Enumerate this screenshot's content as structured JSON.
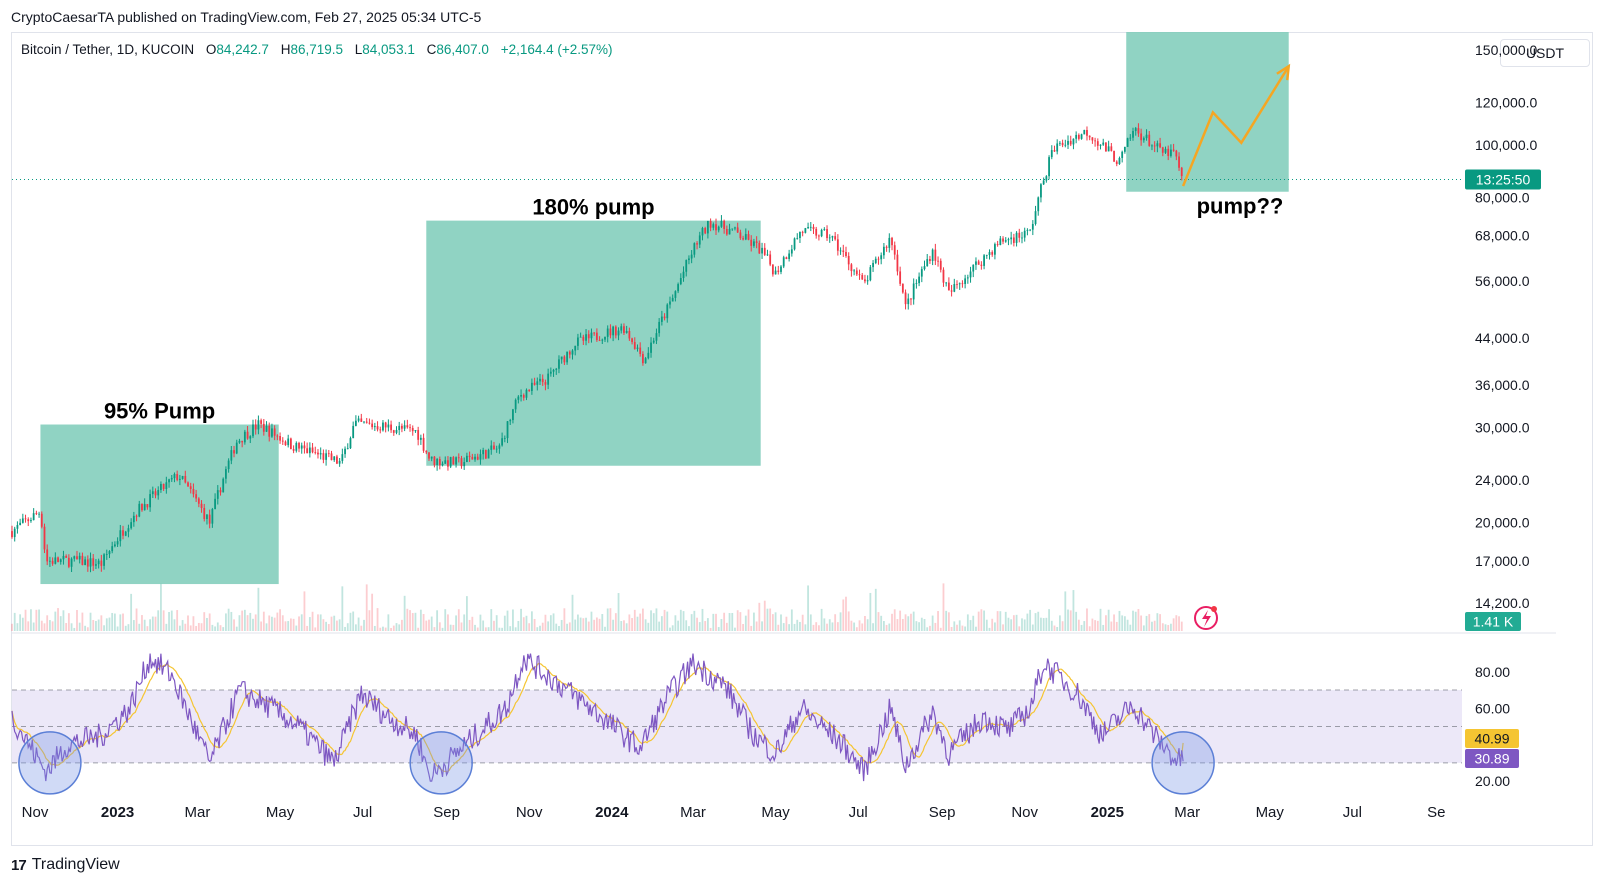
{
  "attribution": "CryptoCaesarTA published on TradingView.com, Feb 27, 2025 05:34 UTC-5",
  "symbol": {
    "name": "Bitcoin / Tether, 1D, KUCOIN",
    "o_label": "O",
    "o": "84,242.7",
    "h_label": "H",
    "h": "86,719.5",
    "l_label": "L",
    "l": "84,053.1",
    "c_label": "C",
    "c": "86,407.0",
    "change": "+2,164.4 (+2.57%)"
  },
  "currency": "USDT",
  "brand": {
    "logo": "17",
    "name": "TradingView"
  },
  "colors": {
    "teal_box": "#7ccbb9",
    "price_up": "#089981",
    "price_down": "#f23645",
    "rsi_line": "#7e57c2",
    "rsi_ma": "#f5c532",
    "arrow": "#f5a623",
    "rsi_band": "#ece8f8"
  },
  "chart_data": [
    {
      "type": "candlestick",
      "name": "price",
      "scale": "log",
      "ylim": [
        12500,
        162000
      ],
      "xlim": [
        "2022-10-15",
        "2025-09-20"
      ],
      "y_ticks": [
        "14,200.0",
        "17,000.0",
        "20,000.0",
        "24,000.0",
        "30,000.0",
        "36,000.0",
        "44,000.0",
        "56,000.0",
        "68,000.0",
        "80,000.0",
        "100,000.0",
        "120,000.0",
        "150,000.0"
      ],
      "y_tick_values": [
        14200,
        17000,
        20000,
        24000,
        30000,
        36000,
        44000,
        56000,
        68000,
        80000,
        100000,
        120000,
        150000
      ],
      "price_path": [
        [
          "2022-10-15",
          19300
        ],
        [
          "2022-11-05",
          21000
        ],
        [
          "2022-11-09",
          17000
        ],
        [
          "2022-12-01",
          17000
        ],
        [
          "2022-12-20",
          16800
        ],
        [
          "2023-01-15",
          21000
        ],
        [
          "2023-02-15",
          24500
        ],
        [
          "2023-03-10",
          20000
        ],
        [
          "2023-03-30",
          28300
        ],
        [
          "2023-04-15",
          30400
        ],
        [
          "2023-05-10",
          27800
        ],
        [
          "2023-06-15",
          25800
        ],
        [
          "2023-06-25",
          30500
        ],
        [
          "2023-07-15",
          30200
        ],
        [
          "2023-08-10",
          29500
        ],
        [
          "2023-08-20",
          26100
        ],
        [
          "2023-09-10",
          25800
        ],
        [
          "2023-10-10",
          27500
        ],
        [
          "2023-10-25",
          34500
        ],
        [
          "2023-11-15",
          37000
        ],
        [
          "2023-12-05",
          43000
        ],
        [
          "2024-01-10",
          46000
        ],
        [
          "2024-01-25",
          40000
        ],
        [
          "2024-02-15",
          52000
        ],
        [
          "2024-03-05",
          67000
        ],
        [
          "2024-03-14",
          72000
        ],
        [
          "2024-04-01",
          69000
        ],
        [
          "2024-04-20",
          64000
        ],
        [
          "2024-05-01",
          58000
        ],
        [
          "2024-05-20",
          69500
        ],
        [
          "2024-06-10",
          68000
        ],
        [
          "2024-07-05",
          55000
        ],
        [
          "2024-07-25",
          67500
        ],
        [
          "2024-08-05",
          50000
        ],
        [
          "2024-08-25",
          64000
        ],
        [
          "2024-09-06",
          53000
        ],
        [
          "2024-10-15",
          66500
        ],
        [
          "2024-11-05",
          69000
        ],
        [
          "2024-11-22",
          98500
        ],
        [
          "2024-12-17",
          106000
        ],
        [
          "2025-01-10",
          93000
        ],
        [
          "2025-01-21",
          107000
        ],
        [
          "2025-02-10",
          97000
        ],
        [
          "2025-02-20",
          96500
        ],
        [
          "2025-02-26",
          84000
        ]
      ],
      "volume_badge": "1.41 K",
      "current_price_line": 86407,
      "countdown_badge": "13:25:50"
    },
    {
      "type": "line",
      "name": "RSI",
      "ylim": [
        14,
        92
      ],
      "y_ticks": [
        "20.00",
        "60.00",
        "80.00"
      ],
      "y_tick_values": [
        20,
        60,
        80
      ],
      "bands": [
        30,
        50,
        70
      ],
      "value_badges": [
        {
          "label": "40.99",
          "color": "#f5c532"
        },
        {
          "label": "30.89",
          "color": "#7e57c2"
        }
      ],
      "rsi_path": [
        [
          "2022-10-15",
          55
        ],
        [
          "2022-11-09",
          25
        ],
        [
          "2022-11-25",
          40
        ],
        [
          "2022-12-20",
          45
        ],
        [
          "2023-01-10",
          60
        ],
        [
          "2023-01-25",
          88
        ],
        [
          "2023-02-10",
          78
        ],
        [
          "2023-03-10",
          30
        ],
        [
          "2023-04-01",
          70
        ],
        [
          "2023-04-25",
          60
        ],
        [
          "2023-05-15",
          50
        ],
        [
          "2023-06-10",
          30
        ],
        [
          "2023-06-30",
          68
        ],
        [
          "2023-07-20",
          55
        ],
        [
          "2023-08-10",
          45
        ],
        [
          "2023-08-20",
          22
        ],
        [
          "2023-09-15",
          40
        ],
        [
          "2023-10-15",
          60
        ],
        [
          "2023-10-28",
          88
        ],
        [
          "2023-11-20",
          75
        ],
        [
          "2023-12-20",
          58
        ],
        [
          "2024-01-22",
          38
        ],
        [
          "2024-02-10",
          65
        ],
        [
          "2024-03-01",
          85
        ],
        [
          "2024-03-25",
          72
        ],
        [
          "2024-04-15",
          45
        ],
        [
          "2024-05-01",
          35
        ],
        [
          "2024-05-20",
          60
        ],
        [
          "2024-06-20",
          40
        ],
        [
          "2024-07-05",
          25
        ],
        [
          "2024-07-25",
          60
        ],
        [
          "2024-08-05",
          28
        ],
        [
          "2024-08-25",
          58
        ],
        [
          "2024-09-06",
          35
        ],
        [
          "2024-10-01",
          55
        ],
        [
          "2024-10-20",
          48
        ],
        [
          "2024-11-05",
          60
        ],
        [
          "2024-11-15",
          85
        ],
        [
          "2024-12-10",
          68
        ],
        [
          "2024-12-28",
          45
        ],
        [
          "2025-01-20",
          62
        ],
        [
          "2025-02-05",
          45
        ],
        [
          "2025-02-20",
          32
        ],
        [
          "2025-02-26",
          30.89
        ]
      ],
      "rsi_ma_final": 40.99
    }
  ],
  "x_ticks": [
    {
      "label": "Nov",
      "date": "2022-11-01",
      "bold": false
    },
    {
      "label": "2023",
      "date": "2023-01-01",
      "bold": true
    },
    {
      "label": "Mar",
      "date": "2023-03-01",
      "bold": false
    },
    {
      "label": "May",
      "date": "2023-05-01",
      "bold": false
    },
    {
      "label": "Jul",
      "date": "2023-07-01",
      "bold": false
    },
    {
      "label": "Sep",
      "date": "2023-09-01",
      "bold": false
    },
    {
      "label": "Nov",
      "date": "2023-11-01",
      "bold": false
    },
    {
      "label": "2024",
      "date": "2024-01-01",
      "bold": true
    },
    {
      "label": "Mar",
      "date": "2024-03-01",
      "bold": false
    },
    {
      "label": "May",
      "date": "2024-05-01",
      "bold": false
    },
    {
      "label": "Jul",
      "date": "2024-07-01",
      "bold": false
    },
    {
      "label": "Sep",
      "date": "2024-09-01",
      "bold": false
    },
    {
      "label": "Nov",
      "date": "2024-11-01",
      "bold": false
    },
    {
      "label": "2025",
      "date": "2025-01-01",
      "bold": true
    },
    {
      "label": "Mar",
      "date": "2025-03-01",
      "bold": false
    },
    {
      "label": "May",
      "date": "2025-05-01",
      "bold": false
    },
    {
      "label": "Jul",
      "date": "2025-07-01",
      "bold": false
    },
    {
      "label": "Se",
      "date": "2025-09-01",
      "bold": false
    }
  ],
  "annotations": {
    "boxes": [
      {
        "name": "pump-box-1",
        "x0": "2022-11-05",
        "x1": "2023-04-30",
        "y0": 15400,
        "y1": 30400,
        "label": "95% Pump"
      },
      {
        "name": "pump-box-2",
        "x0": "2023-08-17",
        "x1": "2024-04-20",
        "y0": 25500,
        "y1": 72500,
        "label": "180% pump"
      },
      {
        "name": "pump-box-3",
        "x0": "2025-01-15",
        "x1": "2025-05-15",
        "y0": 82000,
        "y1": 162000,
        "label": "pump??"
      }
    ],
    "projection": [
      [
        "2025-02-26",
        84000
      ],
      [
        "2025-03-20",
        115000
      ],
      [
        "2025-04-10",
        101000
      ],
      [
        "2025-05-15",
        140000
      ]
    ],
    "rsi_circles": [
      {
        "date": "2022-11-12",
        "value": 30
      },
      {
        "date": "2023-08-28",
        "value": 30
      },
      {
        "date": "2025-02-26",
        "value": 30
      }
    ]
  }
}
